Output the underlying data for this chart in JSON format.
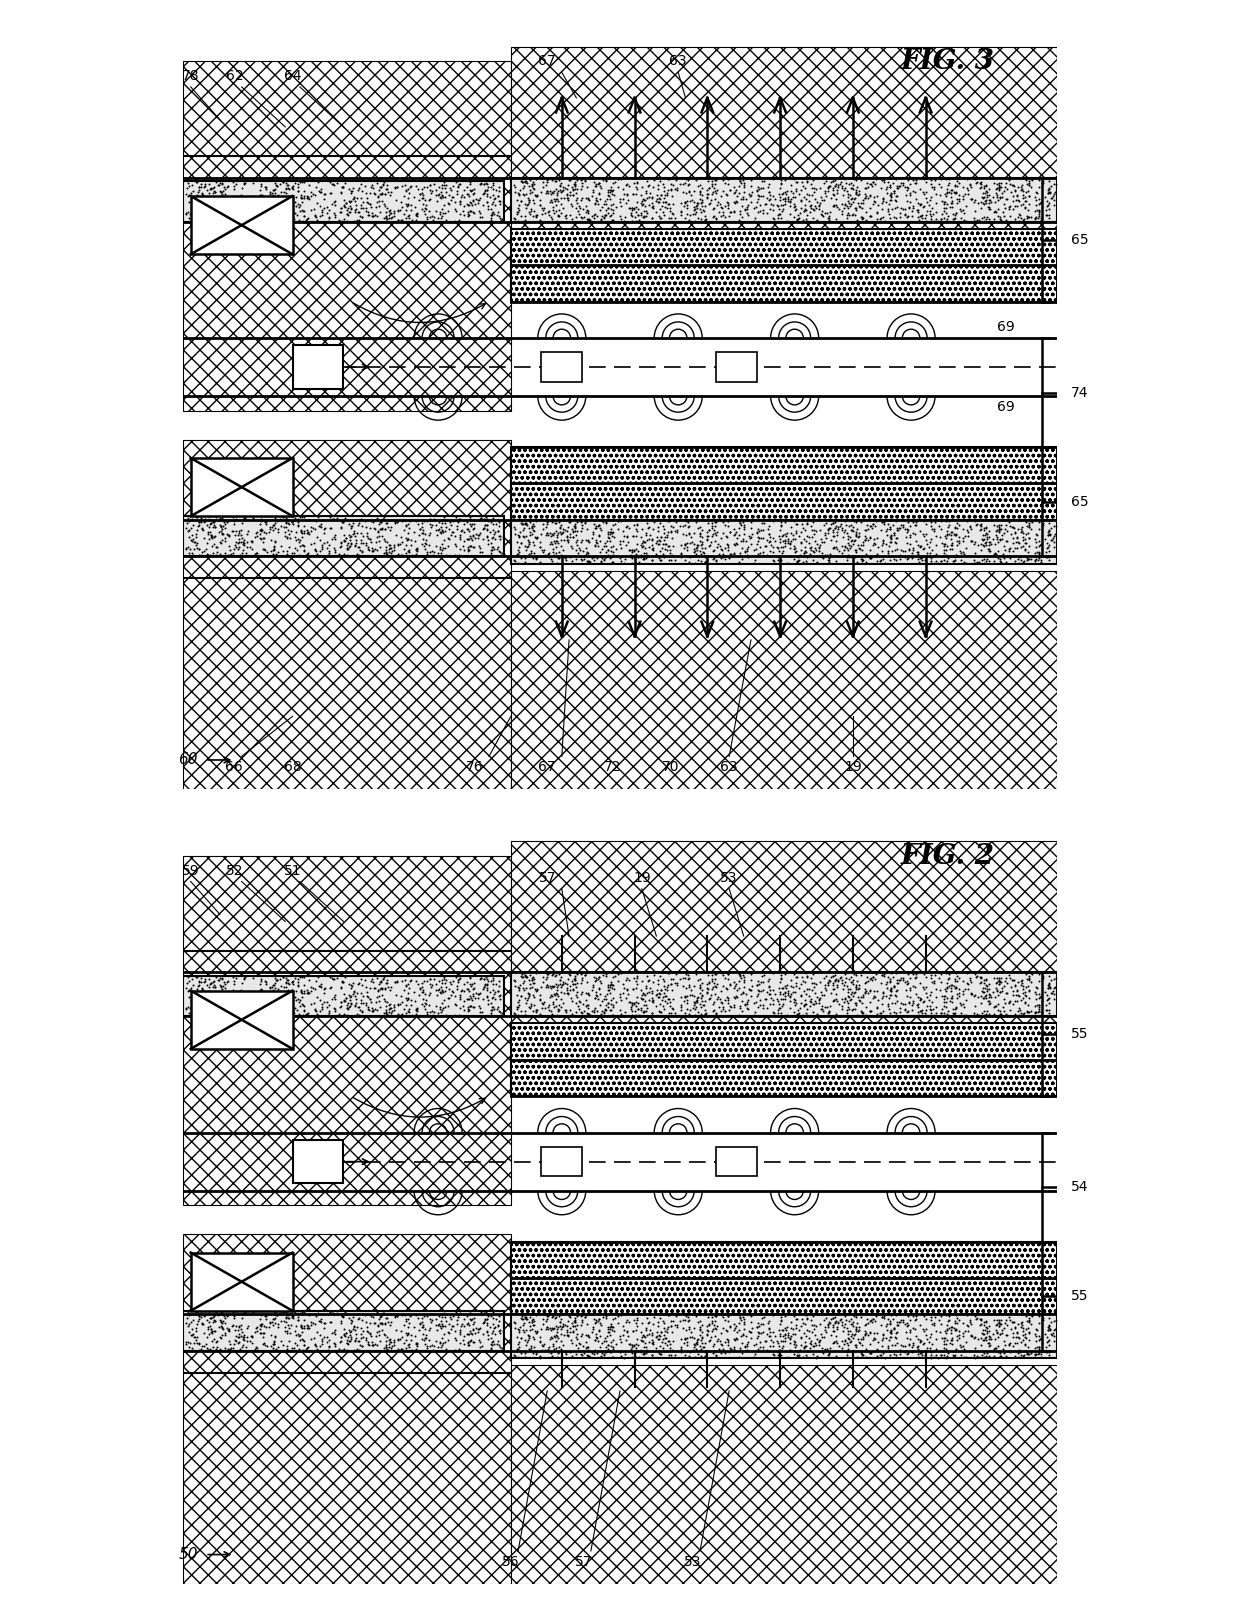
{
  "fig_width": 12.4,
  "fig_height": 16.16,
  "dpi": 100,
  "bg_color": "#ffffff",
  "line_color": "#000000",
  "fig2_label": "FIG. 2",
  "fig3_label": "FIG. 3",
  "fig2_ref": "50",
  "fig3_ref": "60"
}
